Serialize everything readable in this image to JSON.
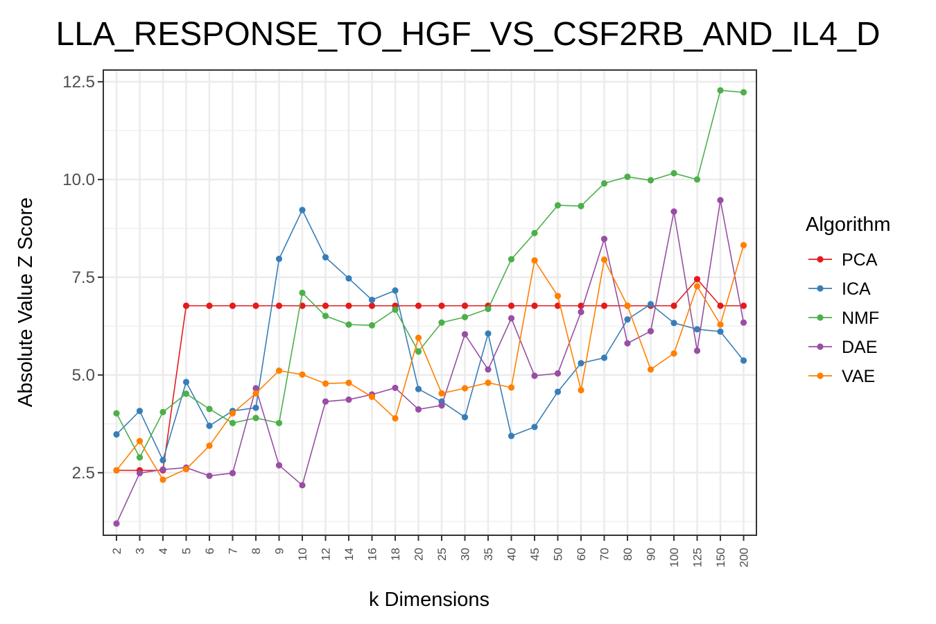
{
  "chart_data": {
    "type": "line",
    "title": "LLA_RESPONSE_TO_HGF_VS_CSF2RB_AND_IL4_D",
    "xlabel": "k Dimensions",
    "ylabel": "Absolute Value Z Score",
    "categories": [
      "2",
      "3",
      "4",
      "5",
      "6",
      "7",
      "8",
      "9",
      "10",
      "12",
      "14",
      "16",
      "18",
      "20",
      "25",
      "30",
      "35",
      "40",
      "45",
      "50",
      "60",
      "70",
      "80",
      "90",
      "100",
      "125",
      "150",
      "200"
    ],
    "ylim": [
      0.9,
      12.8
    ],
    "yticks": [
      2.5,
      5.0,
      7.5,
      10.0,
      12.5
    ],
    "ytick_labels": [
      "2.5",
      "5.0",
      "7.5",
      "10.0",
      "12.5"
    ],
    "grid": true,
    "legend_title": "Algorithm",
    "legend_position": "right",
    "series": [
      {
        "name": "PCA",
        "color": "#E41A1C",
        "values": [
          2.56,
          2.56,
          2.56,
          6.77,
          6.77,
          6.77,
          6.77,
          6.77,
          6.77,
          6.77,
          6.77,
          6.77,
          6.77,
          6.77,
          6.77,
          6.77,
          6.77,
          6.77,
          6.77,
          6.77,
          6.77,
          6.77,
          6.77,
          6.77,
          6.77,
          7.45,
          6.77,
          6.77
        ]
      },
      {
        "name": "ICA",
        "color": "#377EB8",
        "values": [
          3.48,
          4.08,
          2.82,
          4.82,
          3.7,
          4.08,
          4.16,
          7.97,
          9.22,
          8.01,
          7.47,
          6.92,
          7.16,
          4.64,
          4.32,
          3.92,
          6.06,
          3.44,
          3.67,
          4.57,
          5.3,
          5.44,
          6.42,
          6.81,
          6.33,
          6.17,
          6.11,
          5.37
        ]
      },
      {
        "name": "NMF",
        "color": "#4DAF4A",
        "values": [
          4.02,
          2.89,
          4.05,
          4.52,
          4.13,
          3.77,
          3.9,
          3.77,
          7.1,
          6.51,
          6.29,
          6.27,
          6.67,
          5.6,
          6.34,
          6.48,
          6.69,
          7.96,
          8.63,
          9.34,
          9.32,
          9.9,
          10.07,
          9.98,
          10.16,
          10.0,
          12.28,
          12.23
        ]
      },
      {
        "name": "DAE",
        "color": "#984EA3",
        "values": [
          1.2,
          2.49,
          2.58,
          2.63,
          2.42,
          2.49,
          4.66,
          2.69,
          2.18,
          4.32,
          4.37,
          4.5,
          4.67,
          4.12,
          4.22,
          6.04,
          5.14,
          6.45,
          4.98,
          5.04,
          6.61,
          8.48,
          5.81,
          6.12,
          9.18,
          5.62,
          9.47,
          6.34
        ]
      },
      {
        "name": "VAE",
        "color": "#FF7F00",
        "values": [
          2.56,
          3.31,
          2.32,
          2.59,
          3.19,
          4.02,
          4.53,
          5.11,
          5.01,
          4.78,
          4.8,
          4.44,
          3.89,
          5.95,
          4.53,
          4.66,
          4.8,
          4.68,
          7.93,
          7.02,
          4.61,
          7.95,
          6.77,
          5.14,
          5.55,
          7.27,
          6.29,
          8.32
        ]
      }
    ]
  }
}
